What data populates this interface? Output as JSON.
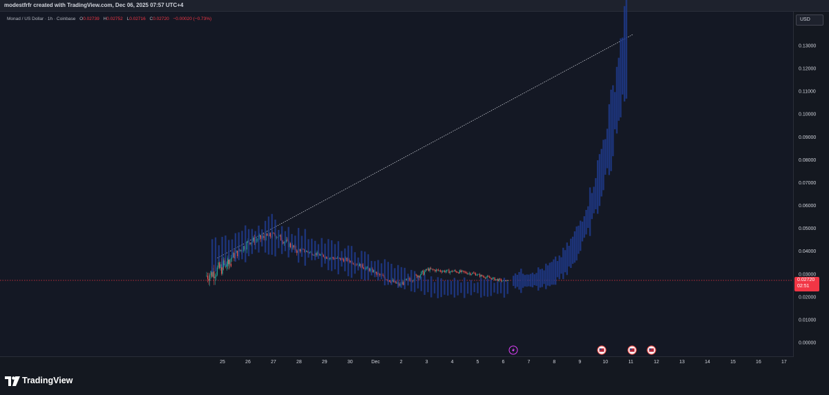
{
  "header": {
    "caption": "modestfrfr created with TradingView.com, Dec 06, 2025 07:57 UTC+4"
  },
  "legend": {
    "symbol": "Monad / US Dollar · 1h · Coinbase",
    "open_label": "O",
    "open": "0.02739",
    "high_label": "H",
    "high": "0.02752",
    "low_label": "L",
    "low": "0.02716",
    "close_label": "C",
    "close": "0.02720",
    "change": "−0.00020 (−0.73%)"
  },
  "currency_button": "USD",
  "last_price": {
    "value": "0.02720",
    "countdown": "02:51"
  },
  "brand": {
    "name": "TradingView"
  },
  "colors": {
    "up": "#26a69a",
    "down": "#ef5350",
    "projection": "#1e3a8a",
    "price_line": "#f23645",
    "bg": "#141824"
  },
  "event_icons": [
    "flash-icon",
    "us-flag-icon",
    "us-flag-icon",
    "us-flag-icon"
  ],
  "chart_data": {
    "type": "candlestick",
    "y_ticks": [
      "0.13000",
      "0.12000",
      "0.11000",
      "0.10000",
      "0.09000",
      "0.08000",
      "0.07000",
      "0.06000",
      "0.05000",
      "0.04000",
      "0.03000",
      "0.02000",
      "0.01000",
      "0.00000"
    ],
    "x_ticks": [
      "25",
      "26",
      "27",
      "28",
      "29",
      "30",
      "Dec",
      "2",
      "3",
      "4",
      "5",
      "6",
      "7",
      "8",
      "9",
      "10",
      "11",
      "12",
      "13",
      "14",
      "15",
      "16",
      "17"
    ],
    "ylim": [
      0.0,
      0.1335
    ],
    "last_price": 0.0272,
    "series_hint": "Hourly Monad/USD candles from Nov 24 to Dec 6, followed by a projected (blue) path rising to ~0.135 around Dec 11",
    "trendline": {
      "from": [
        "Nov 24",
        0.037
      ],
      "to": [
        "Dec 11",
        0.135
      ]
    },
    "daily_ranges": [
      {
        "day": "24",
        "low": 0.0205,
        "high": 0.046,
        "close": 0.035
      },
      {
        "day": "25",
        "low": 0.032,
        "high": 0.047,
        "close": 0.043
      },
      {
        "day": "26",
        "low": 0.038,
        "high": 0.05,
        "close": 0.047
      },
      {
        "day": "27",
        "low": 0.036,
        "high": 0.048,
        "close": 0.04
      },
      {
        "day": "28",
        "low": 0.035,
        "high": 0.042,
        "close": 0.038
      },
      {
        "day": "29",
        "low": 0.033,
        "high": 0.04,
        "close": 0.036
      },
      {
        "day": "30",
        "low": 0.029,
        "high": 0.036,
        "close": 0.031
      },
      {
        "day": "Dec 1",
        "low": 0.023,
        "high": 0.031,
        "close": 0.025
      },
      {
        "day": "2",
        "low": 0.025,
        "high": 0.035,
        "close": 0.031
      },
      {
        "day": "3",
        "low": 0.028,
        "high": 0.034,
        "close": 0.031
      },
      {
        "day": "4",
        "low": 0.028,
        "high": 0.034,
        "close": 0.03
      },
      {
        "day": "5",
        "low": 0.026,
        "high": 0.031,
        "close": 0.027
      },
      {
        "day": "6",
        "low": 0.026,
        "high": 0.028,
        "close": 0.0272
      }
    ]
  }
}
